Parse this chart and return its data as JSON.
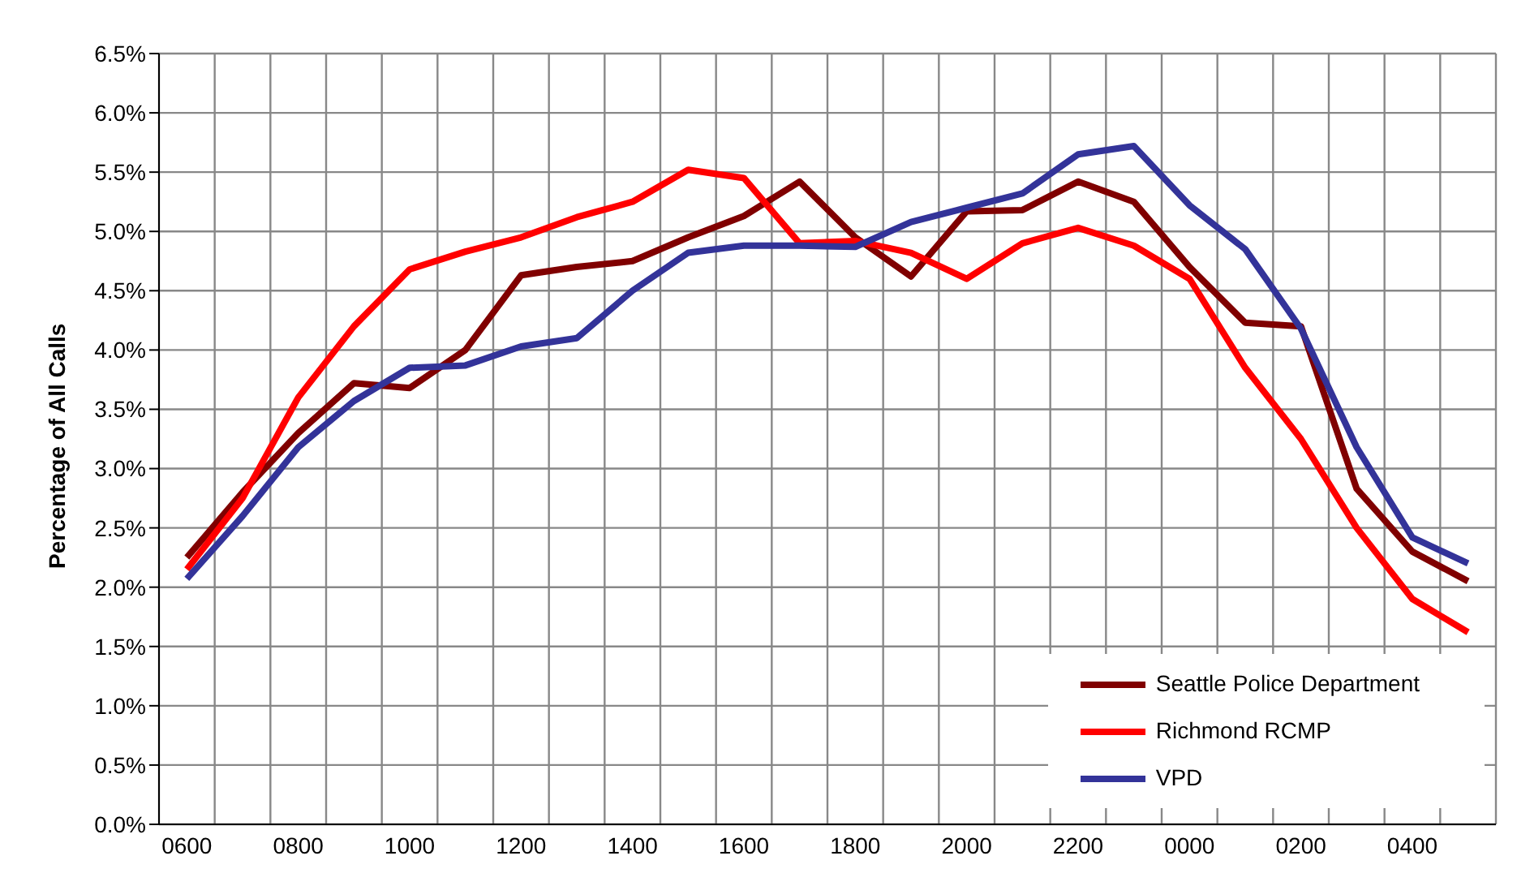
{
  "chart_data": {
    "type": "line",
    "ylabel": "Percentage of All Calls",
    "categories": [
      "0600",
      null,
      "0800",
      null,
      "1000",
      null,
      "1200",
      null,
      "1400",
      null,
      "1600",
      null,
      "1800",
      null,
      "2000",
      null,
      "2200",
      null,
      "0000",
      null,
      "0200",
      null,
      "0400",
      null
    ],
    "series": [
      {
        "name": "Seattle Police Department",
        "color": "#800000",
        "values": [
          2.25,
          2.8,
          3.3,
          3.72,
          3.68,
          4.0,
          4.63,
          4.7,
          4.75,
          4.95,
          5.13,
          5.42,
          4.95,
          4.62,
          5.17,
          5.18,
          5.42,
          5.25,
          4.7,
          4.23,
          4.2,
          2.83,
          2.3,
          2.05
        ]
      },
      {
        "name": "Richmond RCMP",
        "color": "#ff0000",
        "values": [
          2.15,
          2.75,
          3.6,
          4.2,
          4.68,
          4.83,
          4.95,
          5.12,
          5.25,
          5.52,
          5.45,
          4.9,
          4.92,
          4.82,
          4.6,
          4.9,
          5.03,
          4.88,
          4.6,
          3.85,
          3.25,
          2.5,
          1.9,
          1.62
        ]
      },
      {
        "name": "VPD",
        "color": "#333399",
        "values": [
          2.07,
          2.6,
          3.18,
          3.57,
          3.85,
          3.87,
          4.03,
          4.1,
          4.5,
          4.82,
          4.88,
          4.88,
          4.87,
          5.08,
          5.2,
          5.32,
          5.65,
          5.72,
          5.22,
          4.85,
          4.18,
          3.18,
          2.42,
          2.2
        ]
      }
    ],
    "ylim": [
      0,
      6.5
    ],
    "yticks": [
      {
        "value": 0,
        "label": "0.0%"
      },
      {
        "value": 0.5,
        "label": "0.5%"
      },
      {
        "value": 1,
        "label": "1.0%"
      },
      {
        "value": 1.5,
        "label": "1.5%"
      },
      {
        "value": 2,
        "label": "2.0%"
      },
      {
        "value": 2.5,
        "label": "2.5%"
      },
      {
        "value": 3,
        "label": "3.0%"
      },
      {
        "value": 3.5,
        "label": "3.5%"
      },
      {
        "value": 4,
        "label": "4.0%"
      },
      {
        "value": 4.5,
        "label": "4.5%"
      },
      {
        "value": 5,
        "label": "5.0%"
      },
      {
        "value": 5.5,
        "label": "5.5%"
      },
      {
        "value": 6,
        "label": "6.0%"
      },
      {
        "value": 6.5,
        "label": "6.5%"
      }
    ],
    "grid": true,
    "legend": "bottom right",
    "marker": "none",
    "line_style": "solid"
  }
}
